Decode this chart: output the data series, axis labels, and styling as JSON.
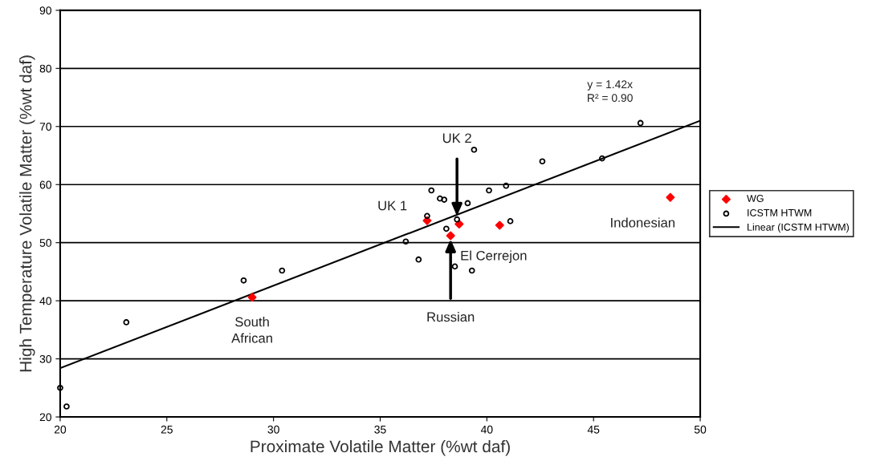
{
  "chart_data": {
    "type": "scatter",
    "xlabel": "Proximate Volatile Matter (%wt daf)",
    "ylabel": "High Temperature Volatile Matter (%wt daf)",
    "xlim": [
      20,
      50
    ],
    "xticks": [
      20,
      25,
      30,
      35,
      40,
      45,
      50
    ],
    "ylim": [
      20,
      90
    ],
    "yticks": [
      20,
      30,
      40,
      50,
      60,
      70,
      80,
      90
    ],
    "grid": "y",
    "legend": "right",
    "series": [
      {
        "name": "WG",
        "marker": "diamond",
        "color": "#ff0000",
        "x": [
          29.0,
          37.2,
          38.7,
          40.6,
          38.3,
          48.6
        ],
        "values": [
          40.6,
          53.8,
          53.2,
          53.0,
          51.2,
          57.8
        ]
      },
      {
        "name": "ICSTM HTWM",
        "marker": "circle",
        "color": "#000000",
        "x": [
          20.0,
          20.3,
          23.1,
          28.6,
          30.4,
          39.4,
          42.6,
          37.4,
          40.1,
          40.9,
          37.8,
          38.0,
          39.1,
          37.2,
          38.6,
          41.1,
          38.1,
          36.2,
          36.8,
          38.5,
          39.3,
          47.2,
          45.4
        ],
        "values": [
          25.0,
          21.8,
          36.3,
          43.5,
          45.2,
          66.0,
          64.0,
          59.0,
          59.0,
          59.8,
          57.6,
          57.4,
          56.8,
          54.6,
          54.0,
          53.7,
          52.4,
          50.2,
          47.1,
          45.9,
          45.2,
          70.6,
          64.5
        ]
      },
      {
        "name": "Linear (ICSTM HTWM)",
        "type": "line",
        "marker": "none",
        "line_style": "solid",
        "color": "#000000",
        "x": [
          20,
          50
        ],
        "values": [
          28.4,
          71.0
        ]
      }
    ],
    "annotations": [
      "y = 1.42x\nR² = 0.90",
      {
        "text": "UK 2",
        "x": 38.6,
        "y": 54.0
      },
      "UK 1",
      "El Cerrejon",
      {
        "text": "Russian",
        "x": 38.3,
        "y": 51.2
      },
      "South\nAfrican",
      "Indonesian"
    ]
  }
}
